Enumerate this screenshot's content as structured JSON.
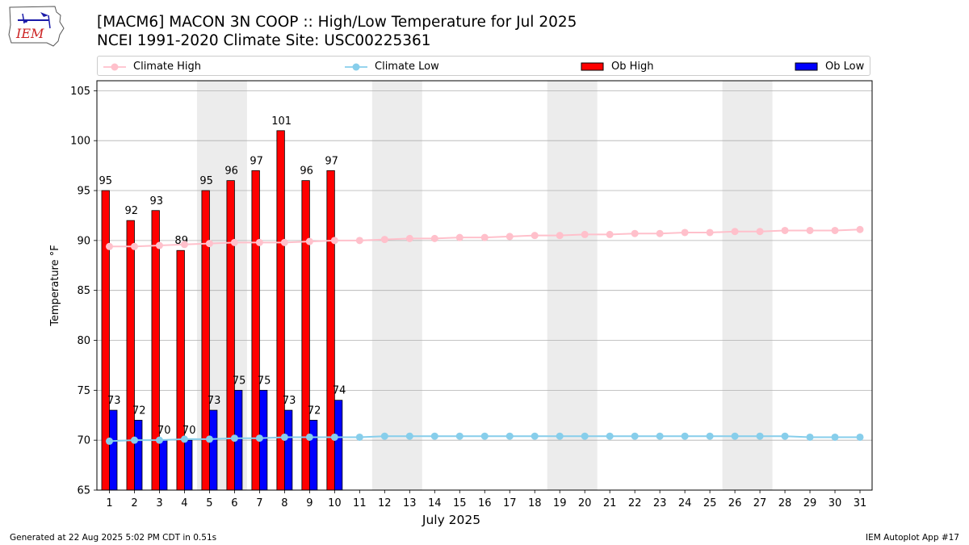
{
  "header": {
    "title_line1": "[MACM6] MACON 3N COOP :: High/Low Temperature for Jul 2025",
    "title_line2": "NCEI 1991-2020 Climate Site: USC00225361"
  },
  "logo": {
    "text": "IEM"
  },
  "legend": {
    "climate_high": "Climate High",
    "climate_low": "Climate Low",
    "ob_high": "Ob High",
    "ob_low": "Ob Low"
  },
  "footer": {
    "left": "Generated at 22 Aug 2025 5:02 PM CDT in 0.51s",
    "right": "IEM Autoplot App #17"
  },
  "colors": {
    "ob_high": "#ff0000",
    "ob_low": "#0000ff",
    "climate_high": "#ffc0cb",
    "climate_low": "#87ceeb",
    "weekend_shade": "#ececec",
    "grid": "#b0b0b0"
  },
  "chart_data": {
    "type": "bar",
    "xlabel": "July 2025",
    "ylabel": "Temperature °F",
    "ylim": [
      65,
      106
    ],
    "yticks": [
      65,
      70,
      75,
      80,
      85,
      90,
      95,
      100,
      105
    ],
    "days": [
      1,
      2,
      3,
      4,
      5,
      6,
      7,
      8,
      9,
      10,
      11,
      12,
      13,
      14,
      15,
      16,
      17,
      18,
      19,
      20,
      21,
      22,
      23,
      24,
      25,
      26,
      27,
      28,
      29,
      30,
      31
    ],
    "shaded_days": [
      [
        5,
        6
      ],
      [
        12,
        13
      ],
      [
        19,
        20
      ],
      [
        26,
        27
      ]
    ],
    "grid": "horizontal",
    "series": [
      {
        "name": "Ob High",
        "type": "bar",
        "values": [
          95,
          92,
          93,
          89,
          95,
          96,
          97,
          101,
          96,
          97
        ]
      },
      {
        "name": "Ob Low",
        "type": "bar",
        "values": [
          73,
          72,
          70,
          70,
          73,
          75,
          75,
          73,
          72,
          74
        ]
      },
      {
        "name": "Climate High",
        "type": "line",
        "values": [
          89.4,
          89.4,
          89.5,
          89.6,
          89.7,
          89.8,
          89.8,
          89.8,
          89.9,
          90.0,
          90.0,
          90.1,
          90.2,
          90.2,
          90.3,
          90.3,
          90.4,
          90.5,
          90.5,
          90.6,
          90.6,
          90.7,
          90.7,
          90.8,
          90.8,
          90.9,
          90.9,
          91.0,
          91.0,
          91.0,
          91.1
        ]
      },
      {
        "name": "Climate Low",
        "type": "line",
        "values": [
          69.9,
          70.0,
          70.0,
          70.1,
          70.1,
          70.2,
          70.2,
          70.3,
          70.3,
          70.3,
          70.3,
          70.4,
          70.4,
          70.4,
          70.4,
          70.4,
          70.4,
          70.4,
          70.4,
          70.4,
          70.4,
          70.4,
          70.4,
          70.4,
          70.4,
          70.4,
          70.4,
          70.4,
          70.3,
          70.3,
          70.3
        ]
      }
    ]
  }
}
